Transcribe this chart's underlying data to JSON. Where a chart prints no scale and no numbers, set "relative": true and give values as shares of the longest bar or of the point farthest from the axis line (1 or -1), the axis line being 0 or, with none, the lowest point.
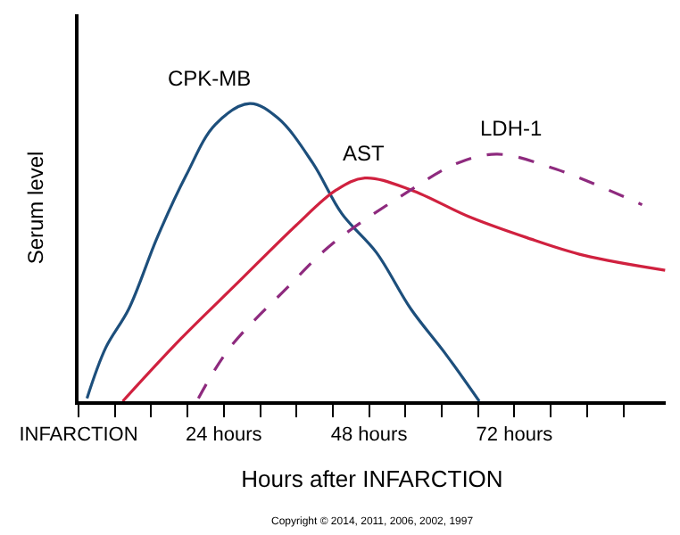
{
  "chart_data": {
    "type": "line",
    "relative": true,
    "xlabel": "Hours after INFARCTION",
    "ylabel": "Serum level",
    "xlim": [
      0,
      97
    ],
    "xticks": [
      {
        "value": 0,
        "label": "INFARCTION"
      },
      {
        "value": 6,
        "label": null
      },
      {
        "value": 12,
        "label": null
      },
      {
        "value": 18,
        "label": null
      },
      {
        "value": 24,
        "label": "24 hours"
      },
      {
        "value": 30,
        "label": null
      },
      {
        "value": 36,
        "label": null
      },
      {
        "value": 42,
        "label": null
      },
      {
        "value": 48,
        "label": "48 hours"
      },
      {
        "value": 54,
        "label": null
      },
      {
        "value": 60,
        "label": null
      },
      {
        "value": 66,
        "label": null
      },
      {
        "value": 72,
        "label": "72 hours"
      },
      {
        "value": 78,
        "label": null
      },
      {
        "value": 84,
        "label": null
      },
      {
        "value": 90,
        "label": null
      }
    ],
    "legend": false,
    "marker": "none",
    "annotations": [
      "Copyright © 2014, 2011, 2006, 2002, 1997"
    ],
    "series": [
      {
        "name": "CPK-MB",
        "color": "#1d4f7c",
        "line_style": "solid",
        "x": [
          1.4,
          4.5,
          8.3,
          13.0,
          17.8,
          22.6,
          28.3,
          33.0,
          38.7,
          43.5,
          49.2,
          54.9,
          60.6,
          66.2
        ],
        "values": [
          0.01,
          0.18,
          0.31,
          0.55,
          0.76,
          0.93,
          1.0,
          0.95,
          0.8,
          0.63,
          0.5,
          0.31,
          0.16,
          0.0
        ]
      },
      {
        "name": "AST",
        "color": "#d0213f",
        "line_style": "solid",
        "x": [
          7.3,
          16.9,
          26.4,
          35.9,
          42.6,
          47.3,
          54.9,
          64.5,
          74.0,
          83.5,
          96.9
        ],
        "values": [
          0.0,
          0.21,
          0.4,
          0.59,
          0.71,
          0.75,
          0.71,
          0.62,
          0.55,
          0.49,
          0.44
        ]
      },
      {
        "name": "LDH-1",
        "color": "#8e2a7e",
        "line_style": "dashed",
        "x": [
          19.8,
          25.0,
          34.4,
          42.0,
          54.9,
          62.6,
          69.2,
          78.8,
          93.1
        ],
        "values": [
          0.01,
          0.18,
          0.38,
          0.53,
          0.71,
          0.8,
          0.83,
          0.78,
          0.66
        ]
      }
    ]
  }
}
